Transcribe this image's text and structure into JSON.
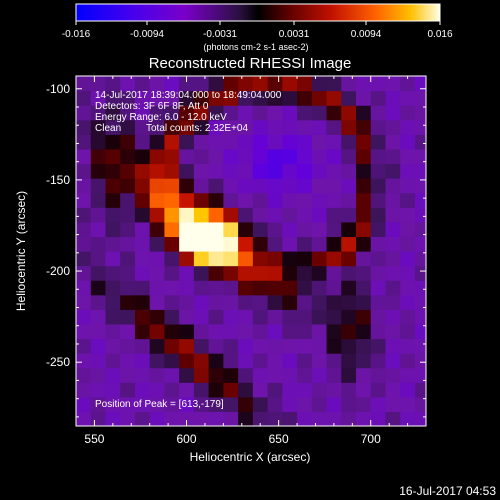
{
  "colorbar": {
    "ticks": [
      "-0.016",
      "-0.0094",
      "-0.0031",
      "0.0031",
      "0.0094",
      "0.016"
    ],
    "units_label": "(photons cm-2 s-1 asec-2)"
  },
  "title": "Reconstructed RHESSI Image",
  "annotations": {
    "time_range": "14-Jul-2017 18:39:04.000 to 18:49:04.000",
    "detectors": "Detectors: 3F 6F 8F, Att 0",
    "energy": "Energy Range: 6.0 - 12.0 keV",
    "clean": "Clean",
    "total_counts": "Total counts: 2.32E+04",
    "peak": "Position of Peak = [613,-179]"
  },
  "footer_timestamp": "16-Jul-2017 04:53",
  "chart_data": {
    "type": "heatmap",
    "title": "Reconstructed RHESSI Image",
    "xlabel": "Heliocentric X (arcsec)",
    "ylabel": "Heliocentric Y (arcsec)",
    "xlim": [
      540,
      730
    ],
    "ylim": [
      -285,
      -93
    ],
    "x_ticks": [
      550,
      600,
      650,
      700
    ],
    "y_ticks": [
      -100,
      -150,
      -200,
      -250
    ],
    "colorbar_range": [
      -0.016,
      0.016
    ],
    "colormap": [
      "#0000ff",
      "#7700cc",
      "#3d1a5c",
      "#000000",
      "#7a0000",
      "#cc1a00",
      "#ff6600",
      "#ffc000",
      "#ffffff"
    ],
    "peak_position": [
      613,
      -179
    ],
    "grid": false
  }
}
